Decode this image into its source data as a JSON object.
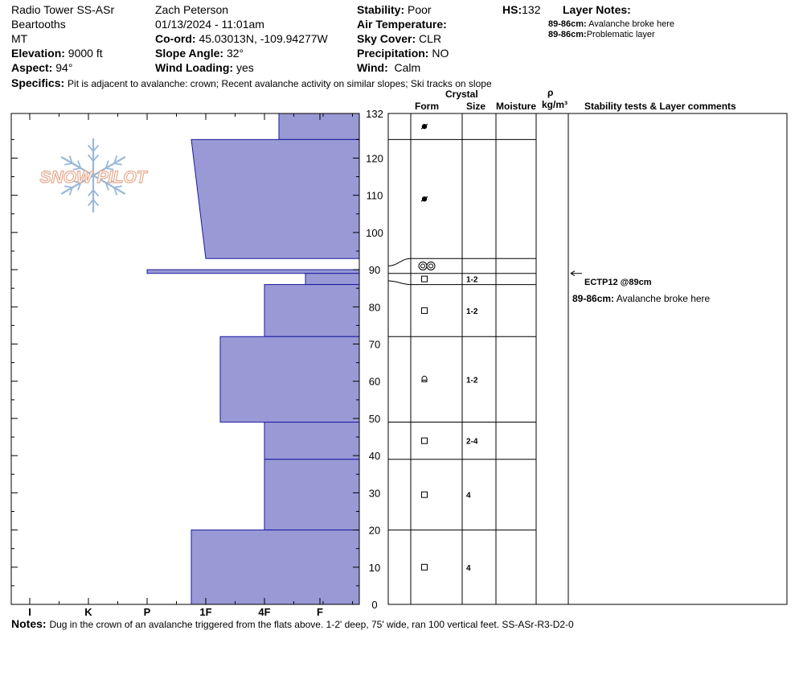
{
  "header": {
    "location": "Radio Tower SS-ASr",
    "range": "Beartooths",
    "state": "MT",
    "elevation_label": "Elevation:",
    "elevation": "9000 ft",
    "aspect_label": "Aspect:",
    "aspect": "94°",
    "observer": "Zach Peterson",
    "datetime": "01/13/2024 - 11:01am",
    "coord_label": "Co-ord:",
    "coord": "45.03013N, -109.94277W",
    "slope_label": "Slope Angle:",
    "slope": "32°",
    "wind_loading_label": "Wind Loading:",
    "wind_loading": "yes",
    "stability_label": "Stability:",
    "stability": "Poor",
    "air_temp_label": "Air Temperature:",
    "sky_label": "Sky Cover:",
    "sky": "CLR",
    "precip_label": "Precipitation:",
    "precip": "NO",
    "wind_label": "Wind:",
    "wind": "Calm",
    "hs_label": "HS:",
    "hs": "132",
    "layer_notes_label": "Layer Notes:",
    "layer_notes": [
      {
        "range": "89-86cm:",
        "text": "Avalanche broke here"
      },
      {
        "range": "89-86cm:",
        "text": "Problematic layer"
      }
    ],
    "specifics_label": "Specifics:",
    "specifics": "Pit is adjacent to avalanche: crown; Recent avalanche activity on similar slopes; Ski tracks on slope"
  },
  "columns": {
    "crystal": "Crystal",
    "form": "Form",
    "size": "Size",
    "moisture": "Moisture",
    "rho": "ρ",
    "density_unit": "kg/m³",
    "stability": "Stability tests & Layer comments"
  },
  "logo_text": "SNOW PILOT",
  "notes_label": "Notes:",
  "notes": "Dug in the crown of an avalanche triggered from the flats above. 1-2' deep, 75' wide, ran 100 vertical feet. SS-ASr-R3-D2-0",
  "stability_test": "ECTP12 @89cm",
  "layer_comment": {
    "range": "89-86cm:",
    "text": "Avalanche broke here"
  },
  "colors": {
    "fill": "#9999d6",
    "stroke": "#1a1aa0",
    "logo": "#e8a98f",
    "flake": "#9ab8d8"
  },
  "chart_data": {
    "type": "bar",
    "orientation": "horizontal",
    "xlabel": "",
    "ylabel": "",
    "hardness_ticks": [
      "I",
      "K",
      "P",
      "1F",
      "4F",
      "F"
    ],
    "ylim": [
      0,
      132
    ],
    "height_ticks": [
      0,
      10,
      20,
      30,
      40,
      50,
      60,
      70,
      80,
      90,
      100,
      110,
      120,
      132
    ],
    "hardness_layers": [
      {
        "top": 132,
        "bottom": 125,
        "hardness": "4F+"
      },
      {
        "top": 125,
        "bottom": 93,
        "hardness_top": "1F-",
        "hardness_bottom": "1F"
      },
      {
        "top": 90,
        "bottom": 89,
        "hardness": "P"
      },
      {
        "top": 89,
        "bottom": 86,
        "hardness": "F-"
      },
      {
        "top": 86,
        "bottom": 72,
        "hardness": "4F"
      },
      {
        "top": 72,
        "bottom": 49,
        "hardness": "1F+"
      },
      {
        "top": 49,
        "bottom": 39,
        "hardness": "4F"
      },
      {
        "top": 39,
        "bottom": 20,
        "hardness": "4F"
      },
      {
        "top": 20,
        "bottom": 0,
        "hardness": "1F-"
      }
    ],
    "grain_layers": [
      {
        "top": 132,
        "bottom": 125,
        "form": "MFcr",
        "size": ""
      },
      {
        "top": 125,
        "bottom": 93,
        "form": "MFcr",
        "size": ""
      },
      {
        "top": 93,
        "bottom": 89,
        "form": "SH",
        "size": ""
      },
      {
        "top": 89,
        "bottom": 86,
        "form": "FC",
        "size": "1-2"
      },
      {
        "top": 86,
        "bottom": 72,
        "form": "FC",
        "size": "1-2"
      },
      {
        "top": 72,
        "bottom": 49,
        "form": "DH",
        "size": "1-2"
      },
      {
        "top": 49,
        "bottom": 39,
        "form": "FC",
        "size": "2-4"
      },
      {
        "top": 39,
        "bottom": 20,
        "form": "FC",
        "size": "4"
      },
      {
        "top": 20,
        "bottom": 0,
        "form": "FC",
        "size": "4"
      }
    ]
  }
}
